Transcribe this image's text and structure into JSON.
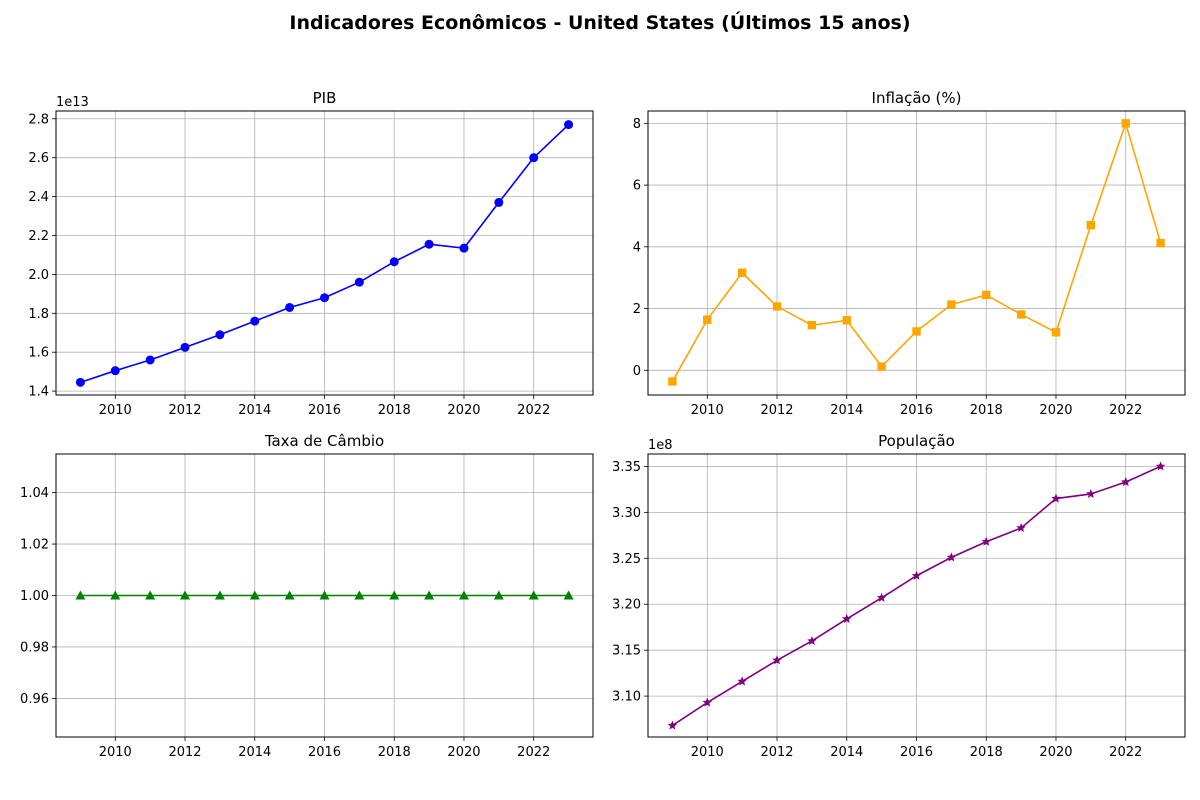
{
  "figure": {
    "title": "Indicadores Econômicos - United States (Últimos 15 anos)"
  },
  "chart_data": [
    {
      "type": "line",
      "title": "PIB",
      "xlabel": "",
      "ylabel": "",
      "offset_text": "1e13",
      "color": "#0000ff",
      "marker": "circle",
      "grid": true,
      "xlim": [
        2008.3,
        2023.7
      ],
      "ylim": [
        1.38,
        2.84
      ],
      "xticks": [
        2010,
        2012,
        2014,
        2016,
        2018,
        2020,
        2022
      ],
      "xtick_labels": [
        "2010",
        "2012",
        "2014",
        "2016",
        "2018",
        "2020",
        "2022"
      ],
      "yticks": [
        1.4,
        1.6,
        1.8,
        2.0,
        2.2,
        2.4,
        2.6,
        2.8
      ],
      "ytick_labels": [
        "1.4",
        "1.6",
        "1.8",
        "2.0",
        "2.2",
        "2.4",
        "2.6",
        "2.8"
      ],
      "x": [
        2009,
        2010,
        2011,
        2012,
        2013,
        2014,
        2015,
        2016,
        2017,
        2018,
        2019,
        2020,
        2021,
        2022,
        2023
      ],
      "y": [
        1.445,
        1.505,
        1.56,
        1.625,
        1.69,
        1.76,
        1.83,
        1.88,
        1.96,
        2.065,
        2.155,
        2.135,
        2.37,
        2.6,
        2.77
      ]
    },
    {
      "type": "line",
      "title": "Inflação (%)",
      "xlabel": "",
      "ylabel": "",
      "offset_text": "",
      "color": "#ffa500",
      "marker": "square",
      "grid": true,
      "xlim": [
        2008.3,
        2023.7
      ],
      "ylim": [
        -0.8,
        8.4
      ],
      "xticks": [
        2010,
        2012,
        2014,
        2016,
        2018,
        2020,
        2022
      ],
      "xtick_labels": [
        "2010",
        "2012",
        "2014",
        "2016",
        "2018",
        "2020",
        "2022"
      ],
      "yticks": [
        0,
        2,
        4,
        6,
        8
      ],
      "ytick_labels": [
        "0",
        "2",
        "4",
        "6",
        "8"
      ],
      "x": [
        2009,
        2010,
        2011,
        2012,
        2013,
        2014,
        2015,
        2016,
        2017,
        2018,
        2019,
        2020,
        2021,
        2022,
        2023
      ],
      "y": [
        -0.36,
        1.64,
        3.16,
        2.07,
        1.46,
        1.62,
        0.12,
        1.26,
        2.13,
        2.44,
        1.81,
        1.23,
        4.7,
        8.0,
        4.12
      ]
    },
    {
      "type": "line",
      "title": "Taxa de Câmbio",
      "xlabel": "",
      "ylabel": "",
      "offset_text": "",
      "color": "#008000",
      "marker": "triangle",
      "grid": true,
      "xlim": [
        2008.3,
        2023.7
      ],
      "ylim": [
        0.945,
        1.055
      ],
      "xticks": [
        2010,
        2012,
        2014,
        2016,
        2018,
        2020,
        2022
      ],
      "xtick_labels": [
        "2010",
        "2012",
        "2014",
        "2016",
        "2018",
        "2020",
        "2022"
      ],
      "yticks": [
        0.96,
        0.98,
        1.0,
        1.02,
        1.04
      ],
      "ytick_labels": [
        "0.96",
        "0.98",
        "1.00",
        "1.02",
        "1.04"
      ],
      "x": [
        2009,
        2010,
        2011,
        2012,
        2013,
        2014,
        2015,
        2016,
        2017,
        2018,
        2019,
        2020,
        2021,
        2022,
        2023
      ],
      "y": [
        1.0,
        1.0,
        1.0,
        1.0,
        1.0,
        1.0,
        1.0,
        1.0,
        1.0,
        1.0,
        1.0,
        1.0,
        1.0,
        1.0,
        1.0
      ]
    },
    {
      "type": "line",
      "title": "População",
      "xlabel": "",
      "ylabel": "",
      "offset_text": "1e8",
      "color": "#800080",
      "marker": "star",
      "grid": true,
      "xlim": [
        2008.3,
        2023.7
      ],
      "ylim": [
        3.0555,
        3.3635
      ],
      "xticks": [
        2010,
        2012,
        2014,
        2016,
        2018,
        2020,
        2022
      ],
      "xtick_labels": [
        "2010",
        "2012",
        "2014",
        "2016",
        "2018",
        "2020",
        "2022"
      ],
      "yticks": [
        3.1,
        3.15,
        3.2,
        3.25,
        3.3,
        3.35
      ],
      "ytick_labels": [
        "3.10",
        "3.15",
        "3.20",
        "3.25",
        "3.30",
        "3.35"
      ],
      "x": [
        2009,
        2010,
        2011,
        2012,
        2013,
        2014,
        2015,
        2016,
        2017,
        2018,
        2019,
        2020,
        2021,
        2022,
        2023
      ],
      "y": [
        3.068,
        3.093,
        3.116,
        3.139,
        3.16,
        3.184,
        3.207,
        3.231,
        3.251,
        3.268,
        3.283,
        3.315,
        3.32,
        3.333,
        3.35
      ]
    }
  ]
}
